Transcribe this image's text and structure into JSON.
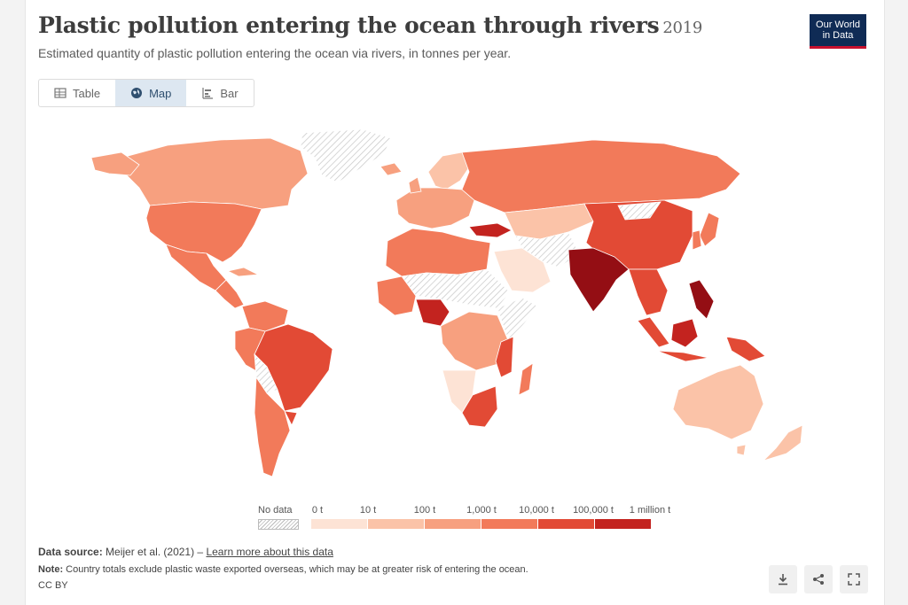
{
  "header": {
    "title": "Plastic pollution entering the ocean through rivers",
    "year": "2019",
    "subtitle": "Estimated quantity of plastic pollution entering the ocean via rivers, in tonnes per year.",
    "logo_line1": "Our World",
    "logo_line2": "in Data"
  },
  "tabs": [
    {
      "label": "Table",
      "icon": "table-icon",
      "active": false
    },
    {
      "label": "Map",
      "icon": "globe-icon",
      "active": true
    },
    {
      "label": "Bar",
      "icon": "bar-chart-icon",
      "active": false
    }
  ],
  "legend": {
    "no_data_label": "No data",
    "ticks": [
      "0 t",
      "10 t",
      "100 t",
      "1,000 t",
      "10,000 t",
      "100,000 t",
      "1 million t"
    ],
    "colors": [
      "#fde3d5",
      "#fbc3a8",
      "#f7a07f",
      "#f27a5a",
      "#e24a35",
      "#c3231f",
      "#940e14"
    ]
  },
  "footer": {
    "source_label": "Data source:",
    "source_text": "Meijer et al. (2021) –",
    "source_link": "Learn more about this data",
    "note_label": "Note:",
    "note_text": "Country totals exclude plastic waste exported overseas, which may be at greater risk of entering the ocean.",
    "license": "CC BY"
  },
  "actions": [
    {
      "name": "download-button",
      "icon": "download-icon"
    },
    {
      "name": "share-button",
      "icon": "share-icon"
    },
    {
      "name": "fullscreen-button",
      "icon": "fullscreen-icon"
    }
  ]
}
